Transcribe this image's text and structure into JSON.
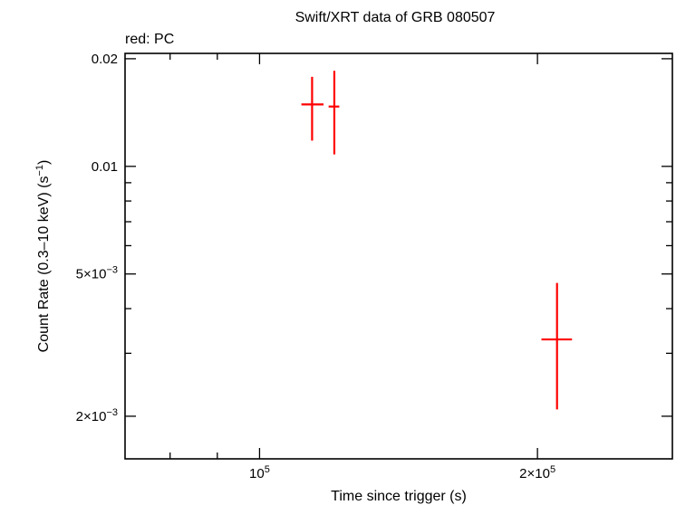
{
  "chart_data": {
    "type": "scatter",
    "title": "Swift/XRT data of GRB 080507",
    "subtitle": "red: PC",
    "xlabel": "Time since trigger (s)",
    "ylabel": {
      "prefix": "Count Rate (0.3–10 keV) (s",
      "sup": "−1",
      "suffix": ")"
    },
    "xscale": "log",
    "yscale": "log",
    "xlim": [
      71500,
      280000
    ],
    "ylim": [
      0.00152,
      0.0207
    ],
    "x_ticks": [
      {
        "value": 100000,
        "mantissa": "",
        "base": "10",
        "exp": "5"
      },
      {
        "value": 200000,
        "mantissa": "2×",
        "base": "10",
        "exp": "5"
      }
    ],
    "y_ticks": [
      {
        "value": 0.02,
        "label": "0.02"
      },
      {
        "value": 0.01,
        "label": "0.01"
      },
      {
        "value": 0.005,
        "mantissa": "5×",
        "base": "10",
        "exp": "−3"
      },
      {
        "value": 0.002,
        "mantissa": "2×",
        "base": "10",
        "exp": "−3"
      }
    ],
    "series": [
      {
        "color": "#ff0000",
        "points": [
          {
            "x": 114000,
            "xerr": [
              111000,
              117300
            ],
            "y": 0.0149,
            "yerr": [
              0.0118,
              0.0178
            ]
          },
          {
            "x": 120500,
            "xerr": [
              118800,
              122000
            ],
            "y": 0.0147,
            "yerr": [
              0.0108,
              0.0185
            ]
          },
          {
            "x": 210000,
            "xerr": [
              202000,
              218000
            ],
            "y": 0.00328,
            "yerr": [
              0.00209,
              0.00472
            ]
          }
        ]
      }
    ],
    "grid": false,
    "legend": "none"
  }
}
